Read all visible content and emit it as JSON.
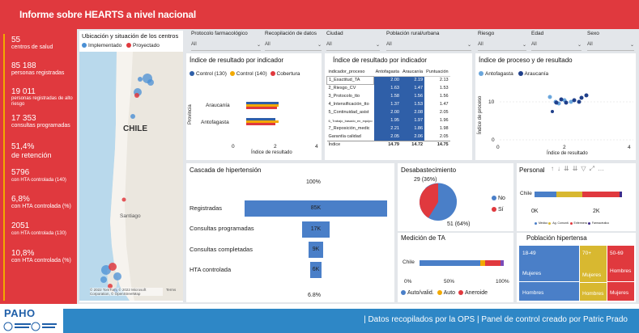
{
  "header": {
    "title": "Informe sobre HEARTS a nivel nacional"
  },
  "kpis": [
    {
      "value": "55",
      "label": "centros de salud"
    },
    {
      "value": "85 188",
      "label": "personas registradas"
    },
    {
      "value": "19 011",
      "label": "personas registradas de alto riesgo"
    },
    {
      "value": "17 353",
      "label": "consultas programadas"
    },
    {
      "value": "51,4%",
      "label": "de retención"
    },
    {
      "value": "5796",
      "label": "con HTA controlada (140)"
    },
    {
      "value": "6,8%",
      "label": "con HTA controlada (%)"
    },
    {
      "value": "2051",
      "label": "con HTA controlada (130)"
    },
    {
      "value": "10,8%",
      "label": "con HTA controlada (%)"
    }
  ],
  "map": {
    "title": "Ubicación y situación de los centros",
    "legend": [
      "Implementado",
      "Proyectado"
    ],
    "country": "CHILE",
    "city": "Santiago",
    "attribution": "© 2022 TomTom, © 2022 Microsoft Corporation, © OpenStreetMap",
    "terms": "Terms"
  },
  "filters": [
    {
      "label": "Protocolo farmacológico",
      "value": "All"
    },
    {
      "label": "Recopilación de datos",
      "value": "All"
    },
    {
      "label": "Ciudad",
      "value": "All"
    },
    {
      "label": "Población rural/urbana",
      "value": "All"
    },
    {
      "label": "Riesgo",
      "value": "All"
    },
    {
      "label": "Edad",
      "value": "All"
    },
    {
      "label": "Sexo",
      "value": "All"
    }
  ],
  "result_chart": {
    "title": "Índice de resultado por indicador",
    "legend": [
      "Control (130)",
      "Control (140)",
      "Cobertura"
    ],
    "ylabel": "Provincia",
    "xlabel": "Índice de resultado",
    "categories": [
      "Araucanía",
      "Antofagasta"
    ],
    "ticks": [
      "0",
      "2",
      "4"
    ]
  },
  "result_table": {
    "title": "Índice de resultado por indicador",
    "headers": [
      "indicador_proceso",
      "Antofagasta",
      "Araucanía",
      "Puntuación"
    ],
    "rows": [
      [
        "1_Exactitud_TA",
        "2.00",
        "2.19",
        "2.13"
      ],
      [
        "2_Riesgo_CV",
        "1.63",
        "1.47",
        "1.53"
      ],
      [
        "3_Protocolo_tto",
        "1.58",
        "1.56",
        "1.56"
      ],
      [
        "4_Intensificación_tto",
        "1.37",
        "1.53",
        "1.47"
      ],
      [
        "5_Continuidad_asist",
        "2.00",
        "2.08",
        "2.05"
      ],
      [
        "6_Trabajo_basado_en_equipo",
        "1.95",
        "1.97",
        "1.96"
      ],
      [
        "7_Reposición_medic",
        "2.21",
        "1.86",
        "1.98"
      ],
      [
        "Garantía calidad",
        "2.05",
        "2.06",
        "2.05"
      ],
      [
        "Índice",
        "14.79",
        "14.72",
        "14.75"
      ]
    ]
  },
  "scatter": {
    "title": "Índice de proceso y de resultado",
    "legend": [
      "Antofagasta",
      "Araucanía"
    ],
    "ylabel": "Índice de proceso",
    "xlabel": "Índice de resultado",
    "yticks": [
      "10",
      "0"
    ],
    "xticks": [
      "0",
      "2",
      "4"
    ]
  },
  "cascade": {
    "title": "Cascada de hipertensión",
    "top_pct": "100%",
    "bottom_pct": "6.8%",
    "rows": [
      {
        "label": "Registradas",
        "value": "85K"
      },
      {
        "label": "Consultas programadas",
        "value": "17K"
      },
      {
        "label": "Consultas completadas",
        "value": "9K"
      },
      {
        "label": "HTA controlada",
        "value": "6K"
      }
    ]
  },
  "stock": {
    "title": "Desabastecimiento",
    "no_label": "51 (64%)",
    "si_label": "29 (36%)",
    "legend": [
      "No",
      "Sí"
    ]
  },
  "personal": {
    "title": "Personal",
    "category": "Chile",
    "ticks": [
      "0K",
      "2K"
    ],
    "legend": [
      "Médico",
      "Ag. Comunit.",
      "Enfermera",
      "Farmacéutico"
    ]
  },
  "ta": {
    "title": "Medición de TA",
    "category": "Chile",
    "ticks": [
      "0%",
      "50%",
      "100%"
    ],
    "legend": [
      "Auto/valid.",
      "Auto",
      "Aneroide"
    ]
  },
  "poblacion": {
    "title": "Población hipertensa",
    "tiles": [
      {
        "age": "18-49",
        "sex1": "Mujeres",
        "sex2": "Hombres"
      },
      {
        "age": "70+",
        "sex1": "Mujeres",
        "sex2": "Hombres"
      },
      {
        "age": "50-69",
        "sex1": "Hombres",
        "sex2": "Mujeres"
      }
    ]
  },
  "footer": {
    "logo": "PAHO",
    "text": "| Datos recopilados por la OPS  | Panel de control creado por Patric Prado"
  }
}
